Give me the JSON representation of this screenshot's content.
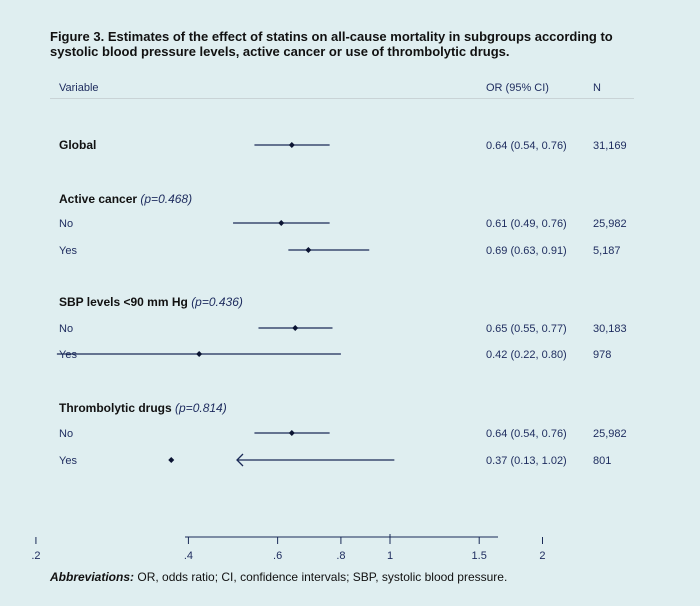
{
  "figure": {
    "title_label": "Figure 3.",
    "title_text": "Estimates of the effect of statins on all-cause mortality in subgroups according to systolic blood pressure levels, active cancer or use of thrombolytic drugs."
  },
  "columns": {
    "variable": "Variable",
    "or": "OR (95% CI)",
    "n": "N"
  },
  "abbreviations": {
    "label": "Abbreviations:",
    "text": "OR, odds ratio; CI, confidence intervals; SBP, systolic blood pressure."
  },
  "chart_data": {
    "type": "forest",
    "xscale": "log",
    "xlim": [
      0.13,
      2.3
    ],
    "x_ticks": [
      0.2,
      0.4,
      0.6,
      0.8,
      1,
      1.5,
      2
    ],
    "x_tick_labels": [
      ".2",
      ".4",
      ".6",
      ".8",
      "1",
      "1.5",
      "2"
    ],
    "reference_line": 1,
    "rows": [
      {
        "kind": "group",
        "label": "Global",
        "or": 0.64,
        "lo": 0.54,
        "hi": 0.76,
        "or_text": "0.64 (0.54, 0.76)",
        "n": "31,169"
      },
      {
        "kind": "header",
        "label": "Active cancer",
        "p_text": "(p=0.468)"
      },
      {
        "kind": "sub",
        "label": "No",
        "or": 0.61,
        "lo": 0.49,
        "hi": 0.76,
        "or_text": "0.61 (0.49, 0.76)",
        "n": "25,982"
      },
      {
        "kind": "sub",
        "label": "Yes",
        "or": 0.69,
        "lo": 0.63,
        "hi": 0.91,
        "or_text": "0.69 (0.63, 0.91)",
        "n": "5,187"
      },
      {
        "kind": "header",
        "label": "SBP levels <90 mm Hg",
        "p_text": "(p=0.436)"
      },
      {
        "kind": "sub",
        "label": "No",
        "or": 0.65,
        "lo": 0.55,
        "hi": 0.77,
        "or_text": "0.65 (0.55, 0.77)",
        "n": "30,183"
      },
      {
        "kind": "sub",
        "label": "Yes",
        "or": 0.42,
        "lo": 0.22,
        "hi": 0.8,
        "or_text": "0.42 (0.22, 0.80)",
        "n": "978"
      },
      {
        "kind": "header",
        "label": "Thrombolytic drugs",
        "p_text": "(p=0.814)"
      },
      {
        "kind": "sub",
        "label": "No",
        "or": 0.64,
        "lo": 0.54,
        "hi": 0.76,
        "or_text": "0.64 (0.54, 0.76)",
        "n": "25,982"
      },
      {
        "kind": "sub",
        "label": "Yes",
        "or": 0.37,
        "lo": 0.13,
        "hi": 1.02,
        "or_text": "0.37 (0.13, 1.02)",
        "n": "801",
        "lower_truncated": true
      }
    ]
  }
}
